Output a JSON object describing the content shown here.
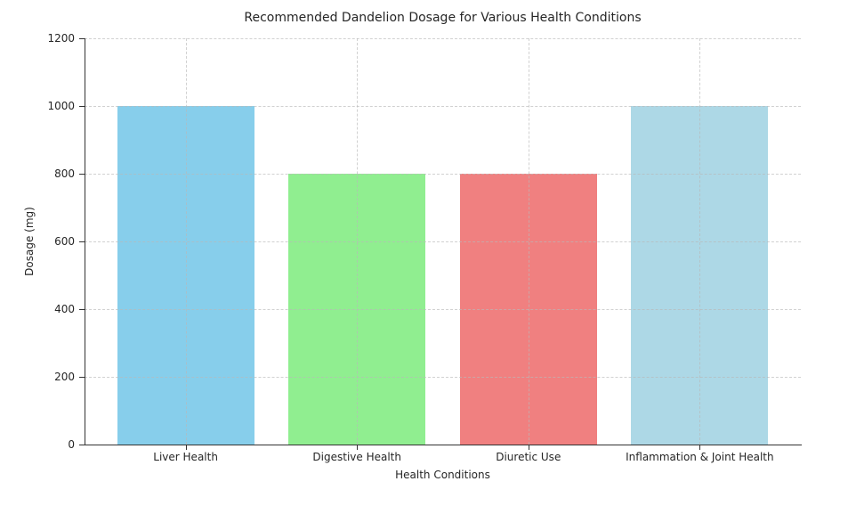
{
  "chart_data": {
    "type": "bar",
    "title": "Recommended Dandelion Dosage for Various Health Conditions",
    "xlabel": "Health Conditions",
    "ylabel": "Dosage (mg)",
    "categories": [
      "Liver Health",
      "Digestive Health",
      "Diuretic Use",
      "Inflammation & Joint Health"
    ],
    "values": [
      1000,
      800,
      800,
      1000
    ],
    "bar_colors": [
      "#87CEEB",
      "#90EE90",
      "#F08080",
      "#ADD8E6"
    ],
    "ylim": [
      0,
      1200
    ],
    "yticks": [
      0,
      200,
      400,
      600,
      800,
      1000,
      1200
    ],
    "grid": "dashed, horizontal and vertical, drawn over bars",
    "legend": "none",
    "spines": [
      "left",
      "bottom"
    ]
  }
}
